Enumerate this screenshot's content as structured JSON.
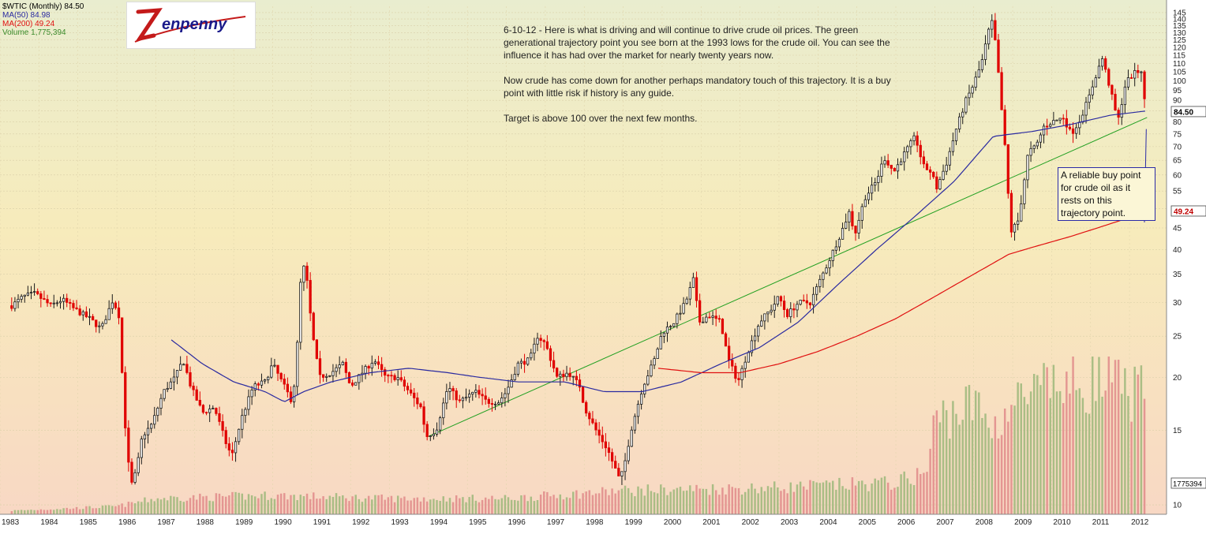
{
  "legend": {
    "symbol": "$WTIC (Monthly) 84.50",
    "ma50": "MA(50) 84.98",
    "ma200": "MA(200) 49.24",
    "volume": "Volume 1,775,394"
  },
  "logo": {
    "text": "Zenpenny"
  },
  "annotation": {
    "p1": "6-10-12 - Here is what is driving and will continue to drive crude oil prices. The green generational trajectory point you see born at the 1993 lows for the crude oil. You can see the influence it has had over the market for nearly twenty years now.",
    "p2": "Now crude has come down for another perhaps mandatory touch of this trajectory. It is a buy point with little risk if history is any guide.",
    "p3": "Target is above 100 over the next few months."
  },
  "callout": "A reliable buy point for crude oil as it rests on this trajectory point.",
  "price_labels": {
    "last": "84.50",
    "ma200": "49.24",
    "volume": "1775394"
  },
  "colors": {
    "up": "#1a1a1a",
    "down": "#e00000",
    "ma50": "#2a2aa0",
    "ma200": "#e01010",
    "trend": "#22a022",
    "vol_up": "#9cb77a",
    "vol_down": "#e08a8a"
  },
  "chart_data": {
    "type": "candlestick",
    "title": "$WTIC (Monthly) 84.50",
    "y_scale": "log",
    "ylim": [
      9.5,
      150
    ],
    "y_ticks": [
      10,
      15,
      20,
      25,
      30,
      35,
      40,
      45,
      50,
      55,
      60,
      65,
      70,
      75,
      80,
      85,
      90,
      95,
      100,
      105,
      110,
      115,
      120,
      125,
      130,
      135,
      140,
      145
    ],
    "x_range": [
      1983.0,
      2012.95
    ],
    "x_tick_labels": [
      "1983",
      "1984",
      "1985",
      "1986",
      "1987",
      "1988",
      "1989",
      "1990",
      "1991",
      "1992",
      "1993",
      "1994",
      "1995",
      "1996",
      "1997",
      "1998",
      "1999",
      "2000",
      "2001",
      "2002",
      "2003",
      "2004",
      "2005",
      "2006",
      "2007",
      "2008",
      "2009",
      "2010",
      "2011",
      "2012"
    ],
    "close_anchors": [
      [
        1983.3,
        29.5
      ],
      [
        1983.6,
        31
      ],
      [
        1983.9,
        31.5
      ],
      [
        1984.3,
        29.5
      ],
      [
        1984.6,
        30.5
      ],
      [
        1984.9,
        29
      ],
      [
        1985.3,
        27.5
      ],
      [
        1985.6,
        26
      ],
      [
        1985.9,
        30.5
      ],
      [
        1986.05,
        28
      ],
      [
        1986.2,
        16
      ],
      [
        1986.35,
        11
      ],
      [
        1986.5,
        12
      ],
      [
        1986.65,
        14.5
      ],
      [
        1986.9,
        15.5
      ],
      [
        1987.2,
        18.5
      ],
      [
        1987.5,
        20
      ],
      [
        1987.7,
        22
      ],
      [
        1987.9,
        19
      ],
      [
        1988.2,
        16.5
      ],
      [
        1988.5,
        17
      ],
      [
        1988.8,
        14
      ],
      [
        1988.95,
        13
      ],
      [
        1989.2,
        16
      ],
      [
        1989.5,
        19
      ],
      [
        1989.8,
        19.5
      ],
      [
        1990.0,
        21.5
      ],
      [
        1990.3,
        19
      ],
      [
        1990.5,
        17.5
      ],
      [
        1990.6,
        21
      ],
      [
        1990.75,
        38
      ],
      [
        1990.9,
        33
      ],
      [
        1991.0,
        26
      ],
      [
        1991.2,
        20
      ],
      [
        1991.5,
        20.5
      ],
      [
        1991.8,
        21.5
      ],
      [
        1992.0,
        19
      ],
      [
        1992.3,
        20.5
      ],
      [
        1992.6,
        22
      ],
      [
        1992.9,
        20
      ],
      [
        1993.2,
        20
      ],
      [
        1993.5,
        18.5
      ],
      [
        1993.8,
        17
      ],
      [
        1993.95,
        14.5
      ],
      [
        1994.2,
        15
      ],
      [
        1994.5,
        19
      ],
      [
        1994.8,
        17.5
      ],
      [
        1995.2,
        18.5
      ],
      [
        1995.5,
        17.5
      ],
      [
        1995.8,
        17.5
      ],
      [
        1996.0,
        18.5
      ],
      [
        1996.3,
        21.5
      ],
      [
        1996.6,
        22
      ],
      [
        1996.8,
        25
      ],
      [
        1997.0,
        24
      ],
      [
        1997.3,
        20
      ],
      [
        1997.6,
        20.5
      ],
      [
        1997.9,
        19
      ],
      [
        1998.0,
        17
      ],
      [
        1998.3,
        15
      ],
      [
        1998.6,
        13.5
      ],
      [
        1998.9,
        11.5
      ],
      [
        1999.0,
        12
      ],
      [
        1999.2,
        15
      ],
      [
        1999.5,
        19
      ],
      [
        1999.8,
        22
      ],
      [
        2000.0,
        25.5
      ],
      [
        2000.3,
        27
      ],
      [
        2000.6,
        30
      ],
      [
        2000.8,
        34
      ],
      [
        2000.95,
        27
      ],
      [
        2001.2,
        28
      ],
      [
        2001.5,
        27
      ],
      [
        2001.7,
        22
      ],
      [
        2001.95,
        19.5
      ],
      [
        2002.2,
        23
      ],
      [
        2002.5,
        27
      ],
      [
        2002.8,
        29
      ],
      [
        2003.0,
        31
      ],
      [
        2003.2,
        28
      ],
      [
        2003.5,
        30
      ],
      [
        2003.8,
        30
      ],
      [
        2004.0,
        33
      ],
      [
        2004.3,
        38
      ],
      [
        2004.6,
        44
      ],
      [
        2004.8,
        49
      ],
      [
        2004.95,
        43.5
      ],
      [
        2005.2,
        53
      ],
      [
        2005.5,
        58
      ],
      [
        2005.7,
        66
      ],
      [
        2005.95,
        61
      ],
      [
        2006.2,
        67
      ],
      [
        2006.5,
        74
      ],
      [
        2006.7,
        63
      ],
      [
        2006.9,
        61
      ],
      [
        2007.05,
        56
      ],
      [
        2007.3,
        64
      ],
      [
        2007.55,
        77
      ],
      [
        2007.8,
        90
      ],
      [
        2007.95,
        96
      ],
      [
        2008.2,
        110
      ],
      [
        2008.45,
        140
      ],
      [
        2008.55,
        124
      ],
      [
        2008.65,
        100
      ],
      [
        2008.8,
        70
      ],
      [
        2008.95,
        44
      ],
      [
        2009.15,
        47
      ],
      [
        2009.4,
        68
      ],
      [
        2009.6,
        70
      ],
      [
        2009.8,
        78
      ],
      [
        2010.0,
        80
      ],
      [
        2010.3,
        82
      ],
      [
        2010.5,
        75
      ],
      [
        2010.7,
        80
      ],
      [
        2010.95,
        91
      ],
      [
        2011.15,
        104
      ],
      [
        2011.3,
        113
      ],
      [
        2011.5,
        96
      ],
      [
        2011.7,
        80
      ],
      [
        2011.9,
        99
      ],
      [
        2012.1,
        104
      ],
      [
        2012.3,
        106
      ],
      [
        2012.4,
        87
      ],
      [
        2012.45,
        84.5
      ]
    ],
    "ma50_anchors": [
      [
        1987.4,
        24.5
      ],
      [
        1988.2,
        21.5
      ],
      [
        1989.0,
        19.5
      ],
      [
        1989.8,
        18.5
      ],
      [
        1990.3,
        17.5
      ],
      [
        1990.8,
        18.5
      ],
      [
        1991.5,
        19.5
      ],
      [
        1992.5,
        20.5
      ],
      [
        1993.5,
        21
      ],
      [
        1994.5,
        20.5
      ],
      [
        1995.3,
        20
      ],
      [
        1996.3,
        19.5
      ],
      [
        1997.5,
        19.5
      ],
      [
        1998.5,
        18.5
      ],
      [
        1999.5,
        18.5
      ],
      [
        2000.5,
        19.5
      ],
      [
        2001.5,
        21.5
      ],
      [
        2002.5,
        23.5
      ],
      [
        2003.5,
        27
      ],
      [
        2004.5,
        33
      ],
      [
        2005.5,
        40
      ],
      [
        2006.5,
        48
      ],
      [
        2007.5,
        58
      ],
      [
        2008.5,
        74
      ],
      [
        2009.5,
        76
      ],
      [
        2010.5,
        79
      ],
      [
        2011.5,
        83
      ],
      [
        2012.45,
        85
      ]
    ],
    "ma200_anchors": [
      [
        1999.9,
        21
      ],
      [
        2001.0,
        20.5
      ],
      [
        2002.0,
        20.5
      ],
      [
        2003.0,
        21.5
      ],
      [
        2004.0,
        23
      ],
      [
        2005.0,
        25
      ],
      [
        2006.0,
        27.5
      ],
      [
        2007.0,
        31
      ],
      [
        2008.0,
        35
      ],
      [
        2008.9,
        39
      ],
      [
        2009.5,
        40.5
      ],
      [
        2010.5,
        43
      ],
      [
        2011.5,
        46
      ],
      [
        2012.45,
        49.24
      ]
    ],
    "volume_anchors": [
      [
        1983.0,
        0.02
      ],
      [
        1986.0,
        0.05
      ],
      [
        1987.0,
        0.1
      ],
      [
        1990.0,
        0.12
      ],
      [
        1993.0,
        0.1
      ],
      [
        1996.0,
        0.1
      ],
      [
        1999.0,
        0.15
      ],
      [
        2003.0,
        0.17
      ],
      [
        2006.0,
        0.2
      ],
      [
        2006.8,
        0.27
      ],
      [
        2007.0,
        0.6
      ],
      [
        2008.0,
        0.7
      ],
      [
        2008.5,
        0.55
      ],
      [
        2009.0,
        0.7
      ],
      [
        2010.0,
        0.8
      ],
      [
        2011.0,
        0.85
      ],
      [
        2012.45,
        0.75
      ]
    ],
    "trendline": [
      [
        1994.0,
        14.5
      ],
      [
        2012.45,
        82
      ]
    ],
    "callout_target": [
      2012.45,
      77
    ]
  }
}
